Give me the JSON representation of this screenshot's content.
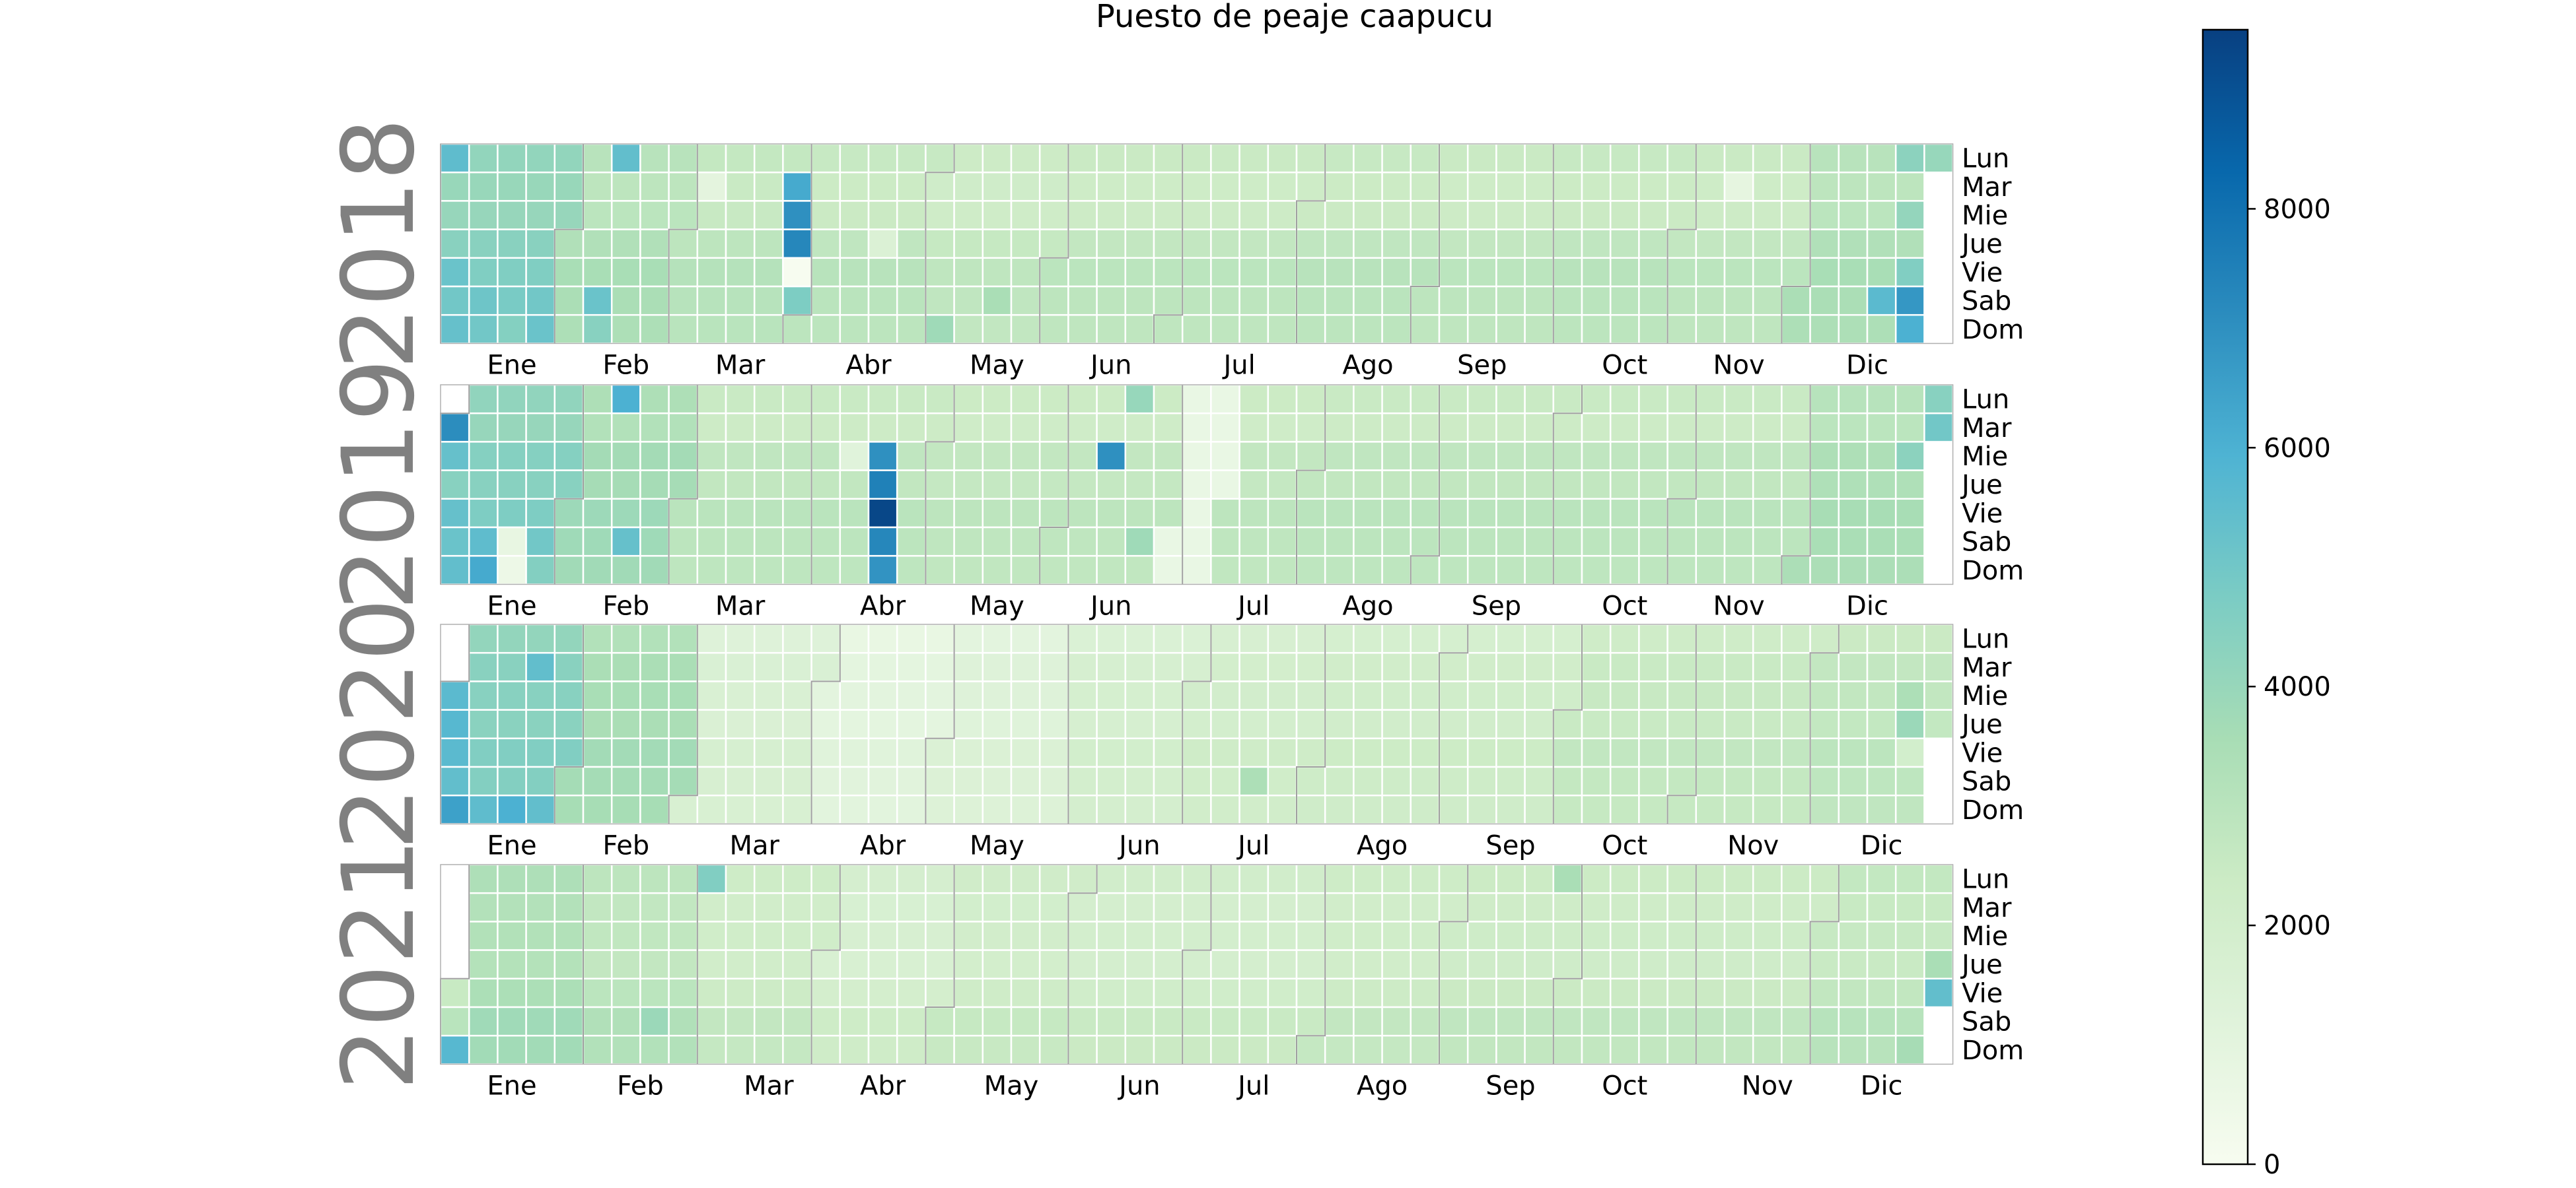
{
  "title": "Puesto de peaje caapucu",
  "chart_data": {
    "type": "heatmap",
    "subtype": "calendar",
    "title": "Puesto de peaje caapucu",
    "colormap": "GnBu",
    "colormap_stops": [
      "#f7fcf0",
      "#e0f3db",
      "#ccebc5",
      "#a8ddb5",
      "#7bccc4",
      "#4eb3d3",
      "#2b8cbe",
      "#0868ac",
      "#084081"
    ],
    "vmin": 0,
    "vmax": 9500,
    "colorbar_ticks": [
      0,
      2000,
      4000,
      6000,
      8000
    ],
    "colorbar_tick_labels": [
      "0",
      "2000",
      "4000",
      "6000",
      "8000"
    ],
    "day_labels": [
      "Lun",
      "Mar",
      "Mie",
      "Jue",
      "Vie",
      "Sab",
      "Dom"
    ],
    "month_labels": [
      "Ene",
      "Feb",
      "Mar",
      "Abr",
      "May",
      "Jun",
      "Jul",
      "Ago",
      "Sep",
      "Oct",
      "Nov",
      "Dic"
    ],
    "years": [
      {
        "year": "2018",
        "base_level": 2500,
        "month_levels": [
          4200,
          3100,
          2700,
          2600,
          2400,
          2500,
          2500,
          2600,
          2500,
          2600,
          2500,
          3100
        ],
        "weekday_offsets": [
          0,
          -100,
          0,
          0,
          300,
          300,
          300
        ],
        "overrides": [
          {
            "date": "2018-01-01",
            "value": 5500
          },
          {
            "date": "2018-01-05",
            "value": 5200
          },
          {
            "date": "2018-01-06",
            "value": 5000
          },
          {
            "date": "2018-01-07",
            "value": 5300
          },
          {
            "date": "2018-01-13",
            "value": 5100
          },
          {
            "date": "2018-01-14",
            "value": 5000
          },
          {
            "date": "2018-01-20",
            "value": 4800
          },
          {
            "date": "2018-01-27",
            "value": 5000
          },
          {
            "date": "2018-01-28",
            "value": 5200
          },
          {
            "date": "2018-02-12",
            "value": 5400
          },
          {
            "date": "2018-02-10",
            "value": 5200
          },
          {
            "date": "2018-02-11",
            "value": 4400
          },
          {
            "date": "2018-03-27",
            "value": 6200
          },
          {
            "date": "2018-03-28",
            "value": 7000
          },
          {
            "date": "2018-03-29",
            "value": 7300
          },
          {
            "date": "2018-03-30",
            "value": 0
          },
          {
            "date": "2018-03-31",
            "value": 4700
          },
          {
            "date": "2018-03-06",
            "value": 1000
          },
          {
            "date": "2018-04-19",
            "value": 1500
          },
          {
            "date": "2018-05-06",
            "value": 3800
          },
          {
            "date": "2018-05-19",
            "value": 3500
          },
          {
            "date": "2018-11-13",
            "value": 900
          },
          {
            "date": "2018-12-22",
            "value": 5600
          },
          {
            "date": "2018-12-28",
            "value": 4600
          },
          {
            "date": "2018-12-29",
            "value": 6800
          },
          {
            "date": "2018-12-30",
            "value": 6000
          },
          {
            "date": "2018-12-31",
            "value": 4000
          },
          {
            "date": "2018-12-24",
            "value": 4300
          },
          {
            "date": "2018-12-26",
            "value": 4100
          }
        ]
      },
      {
        "year": "2019",
        "base_level": 2500,
        "month_levels": [
          4300,
          3500,
          2600,
          2600,
          2500,
          2500,
          2500,
          2600,
          2600,
          2600,
          2600,
          3200
        ],
        "weekday_offsets": [
          0,
          -100,
          0,
          0,
          300,
          300,
          300
        ],
        "overrides": [
          {
            "date": "2019-01-01",
            "value": 7100
          },
          {
            "date": "2019-01-02",
            "value": 5300
          },
          {
            "date": "2019-01-04",
            "value": 5300
          },
          {
            "date": "2019-01-05",
            "value": 5200
          },
          {
            "date": "2019-01-06",
            "value": 5400
          },
          {
            "date": "2019-01-12",
            "value": 5500
          },
          {
            "date": "2019-01-13",
            "value": 6200
          },
          {
            "date": "2019-01-19",
            "value": 800
          },
          {
            "date": "2019-01-20",
            "value": 500
          },
          {
            "date": "2019-01-26",
            "value": 5000
          },
          {
            "date": "2019-02-11",
            "value": 6000
          },
          {
            "date": "2019-02-16",
            "value": 5300
          },
          {
            "date": "2019-04-17",
            "value": 7000
          },
          {
            "date": "2019-04-18",
            "value": 7500
          },
          {
            "date": "2019-04-19",
            "value": 9300
          },
          {
            "date": "2019-04-20",
            "value": 7300
          },
          {
            "date": "2019-04-21",
            "value": 6900
          },
          {
            "date": "2019-04-10",
            "value": 1200
          },
          {
            "date": "2019-06-12",
            "value": 7000
          },
          {
            "date": "2019-06-17",
            "value": 4000
          },
          {
            "date": "2019-06-22",
            "value": 3800
          },
          {
            "date": "2019-07-01",
            "value": 700
          },
          {
            "date": "2019-07-02",
            "value": 700
          },
          {
            "date": "2019-07-03",
            "value": 700
          },
          {
            "date": "2019-07-04",
            "value": 700
          },
          {
            "date": "2019-07-05",
            "value": 700
          },
          {
            "date": "2019-07-06",
            "value": 700
          },
          {
            "date": "2019-07-07",
            "value": 700
          },
          {
            "date": "2019-07-08",
            "value": 700
          },
          {
            "date": "2019-07-09",
            "value": 700
          },
          {
            "date": "2019-07-10",
            "value": 700
          },
          {
            "date": "2019-07-11",
            "value": 700
          },
          {
            "date": "2019-06-29",
            "value": 700
          },
          {
            "date": "2019-06-30",
            "value": 700
          },
          {
            "date": "2019-12-25",
            "value": 4300
          },
          {
            "date": "2019-12-30",
            "value": 4400
          },
          {
            "date": "2019-12-31",
            "value": 5000
          }
        ]
      },
      {
        "year": "2020",
        "base_level": 1800,
        "month_levels": [
          4300,
          3400,
          1500,
          900,
          1200,
          1700,
          1900,
          2000,
          2000,
          2400,
          2400,
          2600
        ],
        "weekday_offsets": [
          0,
          -100,
          0,
          0,
          300,
          300,
          300
        ],
        "overrides": [
          {
            "date": "2020-01-01",
            "value": 5600
          },
          {
            "date": "2020-01-02",
            "value": 5700
          },
          {
            "date": "2020-01-03",
            "value": 5600
          },
          {
            "date": "2020-01-04",
            "value": 5400
          },
          {
            "date": "2020-01-05",
            "value": 6500
          },
          {
            "date": "2020-01-12",
            "value": 5500
          },
          {
            "date": "2020-01-19",
            "value": 6000
          },
          {
            "date": "2020-01-26",
            "value": 5400
          },
          {
            "date": "2020-01-21",
            "value": 5400
          },
          {
            "date": "2020-07-18",
            "value": 3400
          },
          {
            "date": "2020-12-23",
            "value": 3400
          },
          {
            "date": "2020-12-24",
            "value": 3900
          },
          {
            "date": "2020-12-25",
            "value": 2000
          }
        ]
      },
      {
        "year": "2021",
        "base_level": 2200,
        "month_levels": [
          3300,
          2800,
          2200,
          1800,
          2100,
          2000,
          2000,
          2200,
          2300,
          2300,
          2300,
          2600
        ],
        "weekday_offsets": [
          0,
          -100,
          0,
          0,
          300,
          300,
          300
        ],
        "overrides": [
          {
            "date": "2021-01-01",
            "value": 2500
          },
          {
            "date": "2021-01-02",
            "value": 3000
          },
          {
            "date": "2021-01-03",
            "value": 5700
          },
          {
            "date": "2021-03-01",
            "value": 4600
          },
          {
            "date": "2021-02-20",
            "value": 3900
          },
          {
            "date": "2021-09-27",
            "value": 3500
          },
          {
            "date": "2021-12-30",
            "value": 3500
          },
          {
            "date": "2021-12-31",
            "value": 5400
          },
          {
            "date": "2021-12-26",
            "value": 3600
          }
        ]
      }
    ]
  }
}
